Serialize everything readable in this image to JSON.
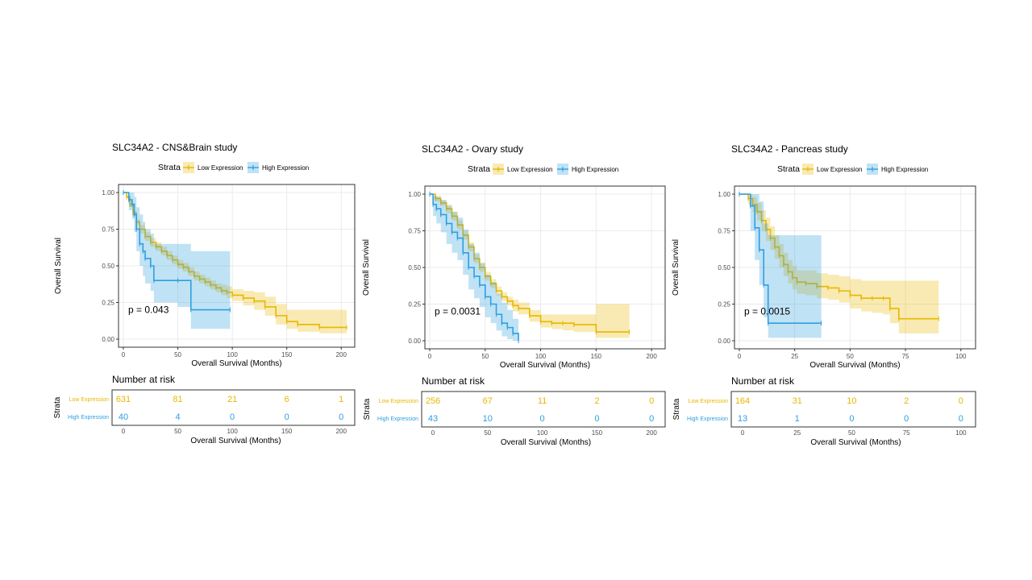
{
  "colors": {
    "low": "#E7B800",
    "high": "#2E9FDF",
    "grid": "#EBEBEB",
    "frame": "#333333",
    "text": "#000000"
  },
  "legend_title": "Strata",
  "legend_labels": [
    "Low Expression",
    "High Expression"
  ],
  "risk_table_title": "Number at risk",
  "risk_ylabel": "Strata",
  "chart_data": [
    {
      "type": "line",
      "title": "SLC34A2 - CNS&Brain study",
      "xlabel": "Overall Survival (Months)",
      "ylabel": "Overall Survival",
      "xlim": [
        0,
        205
      ],
      "ylim": [
        0,
        1
      ],
      "xticks": [
        0,
        50,
        100,
        150,
        200
      ],
      "yticks": [
        "0.00",
        "0.25",
        "0.50",
        "0.75",
        "1.00"
      ],
      "pvalue": "p = 0.043",
      "legend": "top",
      "series": [
        {
          "name": "Low Expression",
          "x": [
            0,
            3,
            6,
            9,
            12,
            15,
            20,
            25,
            30,
            35,
            40,
            45,
            50,
            55,
            60,
            65,
            70,
            75,
            80,
            85,
            90,
            95,
            100,
            110,
            120,
            130,
            140,
            150,
            160,
            180,
            205
          ],
          "y": [
            1.0,
            0.97,
            0.92,
            0.86,
            0.8,
            0.75,
            0.7,
            0.66,
            0.63,
            0.6,
            0.57,
            0.54,
            0.51,
            0.49,
            0.46,
            0.43,
            0.41,
            0.39,
            0.37,
            0.35,
            0.33,
            0.32,
            0.3,
            0.28,
            0.26,
            0.22,
            0.16,
            0.12,
            0.1,
            0.08,
            0.08
          ],
          "lower": [
            1.0,
            0.96,
            0.9,
            0.84,
            0.78,
            0.72,
            0.67,
            0.63,
            0.6,
            0.57,
            0.54,
            0.51,
            0.48,
            0.46,
            0.43,
            0.4,
            0.38,
            0.36,
            0.34,
            0.32,
            0.3,
            0.28,
            0.26,
            0.23,
            0.2,
            0.16,
            0.1,
            0.07,
            0.05,
            0.04,
            0.04
          ],
          "upper": [
            1.0,
            0.98,
            0.94,
            0.88,
            0.82,
            0.78,
            0.73,
            0.69,
            0.66,
            0.63,
            0.6,
            0.57,
            0.54,
            0.52,
            0.49,
            0.46,
            0.44,
            0.42,
            0.4,
            0.38,
            0.37,
            0.36,
            0.34,
            0.33,
            0.32,
            0.29,
            0.24,
            0.2,
            0.2,
            0.2,
            0.2
          ]
        },
        {
          "name": "High Expression",
          "x": [
            0,
            5,
            8,
            10,
            12,
            15,
            18,
            20,
            25,
            28,
            50,
            62,
            98
          ],
          "y": [
            1.0,
            0.95,
            0.92,
            0.85,
            0.75,
            0.65,
            0.6,
            0.55,
            0.5,
            0.4,
            0.4,
            0.2,
            0.2
          ],
          "lower": [
            1.0,
            0.88,
            0.82,
            0.73,
            0.6,
            0.5,
            0.43,
            0.38,
            0.33,
            0.25,
            0.22,
            0.07,
            0.07
          ],
          "upper": [
            1.0,
            1.0,
            1.0,
            0.97,
            0.9,
            0.85,
            0.8,
            0.75,
            0.72,
            0.65,
            0.65,
            0.6,
            0.6
          ]
        }
      ],
      "risk_table": {
        "xticks": [
          0,
          50,
          100,
          150,
          200
        ],
        "rows": [
          {
            "label": "Low Expression",
            "values": [
              "631",
              "81",
              "21",
              "6",
              "1"
            ]
          },
          {
            "label": "High Expression",
            "values": [
              "40",
              "4",
              "0",
              "0",
              "0"
            ]
          }
        ]
      }
    },
    {
      "type": "line",
      "title": "SLC34A2 - Ovary study",
      "xlabel": "Overall Survival (Months)",
      "ylabel": "Overall Survival",
      "xlim": [
        0,
        205
      ],
      "ylim": [
        0,
        1
      ],
      "xticks": [
        0,
        50,
        100,
        150,
        200
      ],
      "yticks": [
        "0.00",
        "0.25",
        "0.50",
        "0.75",
        "1.00"
      ],
      "pvalue": "p = 0.0031",
      "legend": "top",
      "series": [
        {
          "name": "Low Expression",
          "x": [
            0,
            5,
            10,
            15,
            20,
            25,
            30,
            35,
            40,
            45,
            50,
            55,
            60,
            65,
            70,
            75,
            80,
            90,
            100,
            110,
            120,
            130,
            150,
            180
          ],
          "y": [
            1.0,
            0.97,
            0.94,
            0.9,
            0.85,
            0.79,
            0.72,
            0.64,
            0.56,
            0.5,
            0.44,
            0.39,
            0.34,
            0.3,
            0.27,
            0.24,
            0.22,
            0.17,
            0.13,
            0.12,
            0.12,
            0.11,
            0.06,
            0.06
          ],
          "lower": [
            1.0,
            0.95,
            0.92,
            0.87,
            0.82,
            0.76,
            0.69,
            0.61,
            0.53,
            0.47,
            0.41,
            0.36,
            0.31,
            0.27,
            0.24,
            0.2,
            0.18,
            0.13,
            0.09,
            0.08,
            0.07,
            0.06,
            0.02,
            0.02
          ],
          "upper": [
            1.0,
            0.99,
            0.96,
            0.93,
            0.88,
            0.82,
            0.75,
            0.67,
            0.59,
            0.53,
            0.47,
            0.42,
            0.37,
            0.33,
            0.3,
            0.28,
            0.26,
            0.21,
            0.18,
            0.18,
            0.18,
            0.18,
            0.25,
            0.25
          ]
        },
        {
          "name": "High Expression",
          "x": [
            0,
            3,
            6,
            10,
            15,
            20,
            25,
            30,
            35,
            40,
            45,
            50,
            55,
            60,
            65,
            70,
            75,
            80
          ],
          "y": [
            1.0,
            0.93,
            0.9,
            0.86,
            0.8,
            0.74,
            0.7,
            0.6,
            0.5,
            0.44,
            0.38,
            0.3,
            0.25,
            0.18,
            0.12,
            0.09,
            0.05,
            0.0
          ],
          "lower": [
            1.0,
            0.85,
            0.8,
            0.74,
            0.66,
            0.6,
            0.55,
            0.45,
            0.35,
            0.29,
            0.23,
            0.16,
            0.12,
            0.07,
            0.03,
            0.01,
            0.0,
            0.0
          ],
          "upper": [
            1.0,
            0.99,
            0.98,
            0.96,
            0.92,
            0.88,
            0.84,
            0.76,
            0.66,
            0.6,
            0.53,
            0.45,
            0.4,
            0.32,
            0.26,
            0.21,
            0.15,
            0.1
          ]
        }
      ],
      "risk_table": {
        "xticks": [
          0,
          50,
          100,
          150,
          200
        ],
        "rows": [
          {
            "label": "Low Expression",
            "values": [
              "256",
              "67",
              "11",
              "2",
              "0"
            ]
          },
          {
            "label": "High Expression",
            "values": [
              "43",
              "10",
              "0",
              "0",
              "0"
            ]
          }
        ]
      }
    },
    {
      "type": "line",
      "title": "SLC34A2 - Pancreas study",
      "xlabel": "Overall Survival (Months)",
      "ylabel": "Overall Survival",
      "xlim": [
        0,
        103
      ],
      "ylim": [
        0,
        1
      ],
      "xticks": [
        0,
        25,
        50,
        75,
        100
      ],
      "yticks": [
        "0.00",
        "0.25",
        "0.50",
        "0.75",
        "1.00"
      ],
      "pvalue": "p = 0.0015",
      "legend": "top",
      "series": [
        {
          "name": "Low Expression",
          "x": [
            0,
            4,
            6,
            8,
            10,
            12,
            14,
            16,
            18,
            20,
            22,
            24,
            26,
            30,
            35,
            40,
            45,
            50,
            55,
            60,
            65,
            68,
            72,
            90
          ],
          "y": [
            1.0,
            0.97,
            0.93,
            0.88,
            0.82,
            0.76,
            0.7,
            0.64,
            0.58,
            0.52,
            0.47,
            0.43,
            0.4,
            0.39,
            0.37,
            0.36,
            0.34,
            0.31,
            0.29,
            0.29,
            0.29,
            0.22,
            0.15,
            0.15
          ],
          "lower": [
            1.0,
            0.93,
            0.88,
            0.82,
            0.75,
            0.68,
            0.62,
            0.56,
            0.5,
            0.44,
            0.39,
            0.35,
            0.32,
            0.31,
            0.29,
            0.28,
            0.26,
            0.22,
            0.2,
            0.19,
            0.18,
            0.12,
            0.05,
            0.05
          ],
          "upper": [
            1.0,
            1.0,
            0.98,
            0.94,
            0.89,
            0.84,
            0.78,
            0.72,
            0.66,
            0.6,
            0.55,
            0.51,
            0.48,
            0.48,
            0.46,
            0.45,
            0.44,
            0.42,
            0.41,
            0.41,
            0.41,
            0.41,
            0.41,
            0.41
          ]
        },
        {
          "name": "High Expression",
          "x": [
            0,
            5,
            7,
            9,
            11,
            13,
            37
          ],
          "y": [
            1.0,
            0.92,
            0.77,
            0.62,
            0.38,
            0.12,
            0.12
          ],
          "lower": [
            1.0,
            0.75,
            0.55,
            0.38,
            0.16,
            0.02,
            0.02
          ],
          "upper": [
            1.0,
            1.0,
            1.0,
            0.95,
            0.8,
            0.72,
            0.72
          ]
        }
      ],
      "risk_table": {
        "xticks": [
          0,
          25,
          50,
          75,
          100
        ],
        "rows": [
          {
            "label": "Low Expression",
            "values": [
              "164",
              "31",
              "10",
              "2",
              "0"
            ]
          },
          {
            "label": "High Expression",
            "values": [
              "13",
              "1",
              "0",
              "0",
              "0"
            ]
          }
        ]
      }
    }
  ]
}
